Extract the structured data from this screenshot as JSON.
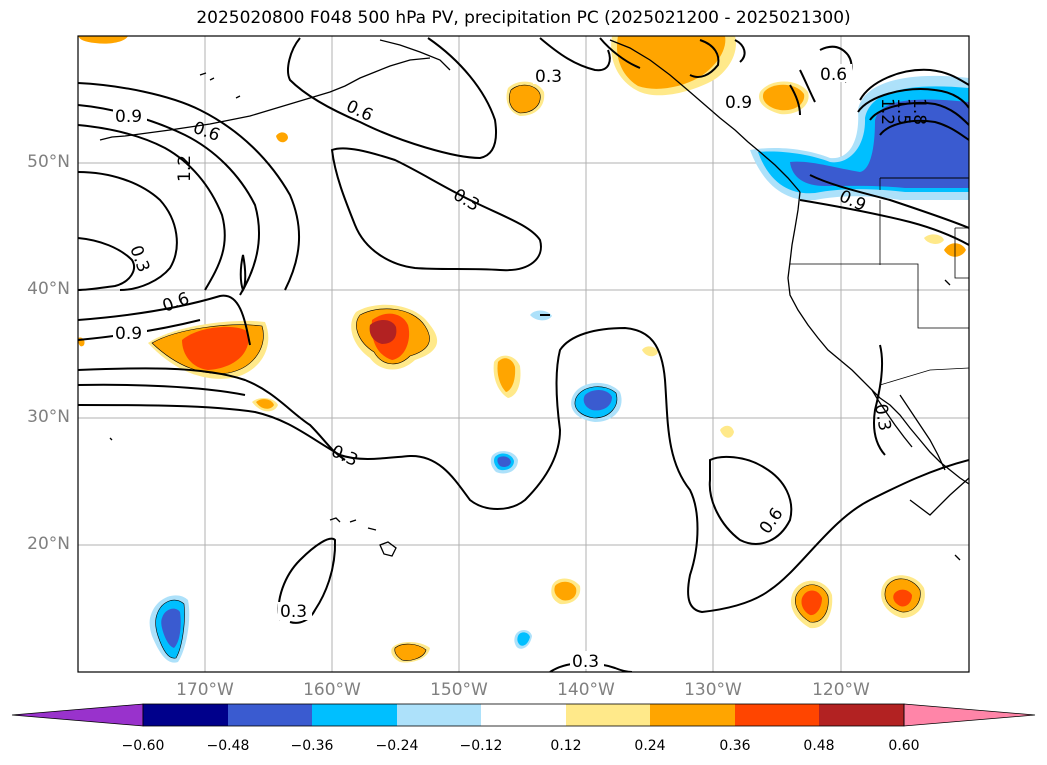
{
  "title": "2025020800 F048 500 hPa PV, precipitation PC (2025021200 - 2025021300)",
  "lat_labels": [
    "50°N",
    "40°N",
    "30°N",
    "20°N"
  ],
  "lon_labels": [
    "170°W",
    "160°W",
    "150°W",
    "140°W",
    "130°W",
    "120°W"
  ],
  "contour_labels": [
    "0.3",
    "0.6",
    "0.9",
    "1.2",
    "1.5",
    "1.8"
  ],
  "colorbar": {
    "ticks": [
      "−0.60",
      "−0.48",
      "−0.36",
      "−0.24",
      "−0.12",
      "0.12",
      "0.24",
      "0.36",
      "0.48",
      "0.60"
    ],
    "colors": [
      "#9932cc",
      "#00008b",
      "#3a5bd0",
      "#00bfff",
      "#ade1fa",
      "#ffffff",
      "#ffe98a",
      "#ffa500",
      "#ff4500",
      "#b22222",
      "#ff85a8"
    ]
  }
}
